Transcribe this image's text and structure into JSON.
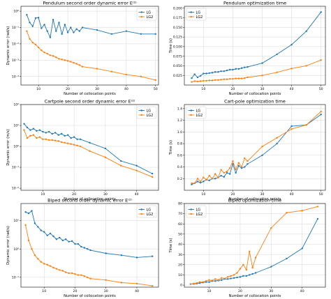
{
  "colors": {
    "LG": "#1f77b4",
    "LG2": "#ff7f0e"
  },
  "chart_data": [
    {
      "type": "line",
      "scale": "log",
      "title": "Pendulum second order dynamic error $E^{[2]}$",
      "xlabel": "Number of collocation points",
      "ylabel": "Dynamic error (rad/s)",
      "xlim": [
        4,
        51
      ],
      "ylim": [
        3e-05,
        2
      ],
      "xticks": [
        10,
        20,
        30,
        40,
        50
      ],
      "yticks": [
        0.0001,
        0.001,
        0.01,
        0.1,
        1
      ],
      "ytick_labels": [
        "10⁻⁴",
        "10⁻³",
        "10⁻²",
        "10⁻¹",
        "10⁰"
      ],
      "legend": "top-right",
      "grid": true,
      "x": [
        6,
        7,
        8,
        9,
        10,
        11,
        12,
        13,
        14,
        15,
        16,
        17,
        18,
        19,
        20,
        21,
        22,
        23,
        24,
        25,
        30,
        35,
        40,
        45,
        50
      ],
      "series": [
        {
          "name": "LG",
          "values": [
            0.6,
            0.2,
            0.12,
            0.38,
            0.4,
            0.09,
            0.15,
            0.06,
            0.025,
            0.3,
            0.06,
            0.2,
            0.04,
            0.15,
            0.05,
            0.1,
            0.05,
            0.08,
            0.06,
            0.1,
            0.07,
            0.04,
            0.06,
            0.04,
            0.04
          ]
        },
        {
          "name": "LG2",
          "values": [
            0.06,
            0.02,
            0.012,
            0.009,
            0.006,
            0.004,
            0.003,
            0.0025,
            0.002,
            0.0018,
            0.0015,
            0.0012,
            0.0011,
            0.001,
            0.0009,
            0.0008,
            0.0007,
            0.0006,
            0.0005,
            0.0004,
            0.0003,
            0.0002,
            0.00013,
            0.0001,
            6e-05
          ]
        }
      ]
    },
    {
      "type": "line",
      "scale": "linear",
      "title": "Pendulum optimization time",
      "xlabel": "Number of collocation points",
      "ylabel": "Time (s)",
      "xlim": [
        3.5,
        51.5
      ],
      "ylim": [
        0,
        0.205
      ],
      "xticks": [
        10,
        20,
        30,
        40,
        50
      ],
      "yticks": [
        0.025,
        0.05,
        0.075,
        0.1,
        0.125,
        0.15,
        0.175,
        0.2
      ],
      "ytick_labels": [
        "0.025",
        "0.050",
        "0.075",
        "0.100",
        "0.125",
        "0.150",
        "0.175",
        "0.200"
      ],
      "legend": "top-left",
      "grid": true,
      "x": [
        6,
        7,
        8,
        9,
        10,
        11,
        12,
        13,
        14,
        15,
        16,
        17,
        18,
        19,
        20,
        21,
        22,
        23,
        24,
        25,
        30,
        35,
        40,
        45,
        50
      ],
      "series": [
        {
          "name": "LG",
          "values": [
            0.018,
            0.028,
            0.02,
            0.024,
            0.03,
            0.03,
            0.031,
            0.032,
            0.034,
            0.034,
            0.036,
            0.036,
            0.038,
            0.04,
            0.04,
            0.042,
            0.042,
            0.044,
            0.046,
            0.047,
            0.057,
            0.08,
            0.105,
            0.14,
            0.19
          ]
        },
        {
          "name": "LG2",
          "values": [
            0.008,
            0.01,
            0.009,
            0.01,
            0.011,
            0.011,
            0.012,
            0.012,
            0.013,
            0.013,
            0.014,
            0.015,
            0.015,
            0.016,
            0.016,
            0.017,
            0.017,
            0.017,
            0.018,
            0.02,
            0.025,
            0.033,
            0.043,
            0.05,
            0.065
          ]
        }
      ]
    },
    {
      "type": "line",
      "scale": "log",
      "title": "Cartpole second order dynamic error $E^{[2]}$",
      "xlabel": "Number of collocation points",
      "ylabel": "Dynamic error (m/s)",
      "xlim": [
        3,
        47
      ],
      "ylim": [
        0.008,
        100
      ],
      "xticks": [
        10,
        20,
        30,
        40
      ],
      "yticks": [
        0.01,
        0.1,
        1,
        10,
        100
      ],
      "ytick_labels": [
        "10⁻²",
        "10⁻¹",
        "10⁰",
        "10¹",
        "10²"
      ],
      "legend": "top-right",
      "grid": true,
      "x": [
        4,
        5,
        6,
        7,
        8,
        9,
        10,
        11,
        12,
        13,
        14,
        15,
        16,
        17,
        18,
        19,
        20,
        21,
        22,
        25,
        30,
        35,
        40,
        45
      ],
      "series": [
        {
          "name": "LG",
          "values": [
            12,
            8,
            6,
            7,
            5.5,
            6,
            5,
            4.5,
            5,
            4,
            4.5,
            3.5,
            4,
            3.2,
            3.5,
            2.5,
            2.8,
            2.2,
            2.2,
            1.5,
            0.8,
            0.2,
            0.12,
            0.05
          ]
        },
        {
          "name": "LG2",
          "values": [
            6,
            2.5,
            3.2,
            3.5,
            2.5,
            2.8,
            2.2,
            2.2,
            2,
            2,
            1.9,
            1.8,
            1.6,
            1.5,
            1.4,
            1.3,
            1.2,
            1.1,
            1,
            0.6,
            0.3,
            0.12,
            0.07,
            0.035
          ]
        }
      ]
    },
    {
      "type": "line",
      "scale": "linear",
      "title": "Cart-pole optimization time",
      "xlabel": "Number of collocation points",
      "ylabel": "Time (s)",
      "xlim": [
        3.5,
        51.5
      ],
      "ylim": [
        0,
        1.47
      ],
      "xticks": [
        10,
        20,
        30,
        40,
        50
      ],
      "yticks": [
        0.2,
        0.4,
        0.6,
        0.8,
        1.0,
        1.2,
        1.4
      ],
      "ytick_labels": [
        "0.2",
        "0.4",
        "0.6",
        "0.8",
        "1.0",
        "1.2",
        "1.4"
      ],
      "legend": "top-left",
      "grid": true,
      "x": [
        6,
        7,
        8,
        9,
        10,
        11,
        12,
        13,
        14,
        15,
        16,
        17,
        18,
        19,
        20,
        21,
        22,
        23,
        24,
        25,
        30,
        35,
        40,
        45,
        50
      ],
      "series": [
        {
          "name": "LG",
          "values": [
            0.1,
            0.12,
            0.15,
            0.13,
            0.15,
            0.18,
            0.17,
            0.2,
            0.2,
            0.22,
            0.25,
            0.23,
            0.3,
            0.28,
            0.45,
            0.3,
            0.42,
            0.38,
            0.4,
            0.45,
            0.6,
            0.8,
            1.1,
            1.12,
            1.3
          ]
        },
        {
          "name": "LG2",
          "values": [
            0.12,
            0.12,
            0.2,
            0.15,
            0.22,
            0.18,
            0.25,
            0.2,
            0.28,
            0.22,
            0.35,
            0.3,
            0.32,
            0.38,
            0.5,
            0.36,
            0.47,
            0.4,
            0.55,
            0.5,
            0.75,
            0.9,
            1.05,
            1.12,
            1.35
          ]
        }
      ]
    },
    {
      "type": "line",
      "scale": "log",
      "title": "Biped second order dynamic error $E^{[2]}$",
      "xlabel": "Number of collocation points",
      "ylabel": "Dynamic error (rad/s)",
      "xlim": [
        2.5,
        47
      ],
      "ylim": [
        0.045,
        40
      ],
      "xticks": [
        10,
        20,
        30,
        40
      ],
      "yticks": [
        0.1,
        1,
        10
      ],
      "ytick_labels": [
        "10⁻¹",
        "10⁰",
        "10¹"
      ],
      "legend": "top-right",
      "grid": true,
      "x": [
        4,
        5,
        6,
        7,
        8,
        9,
        10,
        11,
        12,
        13,
        14,
        15,
        16,
        17,
        18,
        19,
        20,
        21,
        22,
        23,
        24,
        25,
        30,
        35,
        40,
        45
      ],
      "series": [
        {
          "name": "LG",
          "values": [
            20,
            18,
            22,
            8,
            6,
            4.5,
            4,
            3,
            3.5,
            2.8,
            2.2,
            2.5,
            2,
            2.2,
            1.8,
            1.9,
            1.5,
            1.5,
            1.2,
            1.1,
            1,
            0.9,
            0.7,
            0.6,
            0.5,
            0.55
          ]
        },
        {
          "name": "LG2",
          "values": [
            7,
            2,
            1,
            0.6,
            0.45,
            0.35,
            0.3,
            0.28,
            0.25,
            0.22,
            0.2,
            0.18,
            0.17,
            0.15,
            0.14,
            0.14,
            0.13,
            0.12,
            0.12,
            0.11,
            0.1,
            0.09,
            0.08,
            0.065,
            0.06,
            0.05
          ]
        }
      ]
    },
    {
      "type": "line",
      "scale": "linear",
      "title": "Biped optimization time",
      "xlabel": "Number of collocation points",
      "ylabel": "Time (s)",
      "xlim": [
        2,
        47.5
      ],
      "ylim": [
        -2,
        80
      ],
      "xticks": [
        10,
        20,
        30,
        40
      ],
      "yticks": [
        0,
        10,
        20,
        30,
        40,
        50,
        60,
        70,
        80
      ],
      "ytick_labels": [
        "0",
        "10",
        "20",
        "30",
        "40",
        "50",
        "60",
        "70",
        "80"
      ],
      "legend": "top-left",
      "grid": true,
      "x": [
        4,
        5,
        6,
        7,
        8,
        9,
        10,
        11,
        12,
        13,
        14,
        15,
        16,
        17,
        18,
        19,
        20,
        21,
        22,
        23,
        24,
        25,
        30,
        35,
        40,
        45
      ],
      "series": [
        {
          "name": "LG",
          "values": [
            1,
            1.2,
            1.5,
            2,
            2.5,
            3,
            3,
            4,
            4,
            4.5,
            5,
            6,
            6,
            6.5,
            7,
            7.5,
            8,
            9,
            9,
            10,
            11,
            12,
            18,
            26,
            36,
            65
          ]
        },
        {
          "name": "LG2",
          "values": [
            1,
            1.5,
            2,
            3,
            3,
            4,
            5,
            4.5,
            6,
            5,
            7,
            6.5,
            8,
            9,
            10,
            12,
            16,
            20,
            15,
            33,
            17,
            27,
            56,
            71,
            73,
            77
          ]
        }
      ]
    }
  ]
}
